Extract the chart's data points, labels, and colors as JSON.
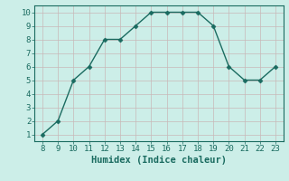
{
  "x": [
    8,
    9,
    10,
    11,
    12,
    13,
    14,
    15,
    16,
    17,
    18,
    19,
    20,
    21,
    22,
    23
  ],
  "y": [
    1,
    2,
    5,
    6,
    8,
    8,
    9,
    10,
    10,
    10,
    10,
    9,
    6,
    5,
    5,
    6
  ],
  "line_color": "#1a6b60",
  "marker": "D",
  "marker_size": 2.5,
  "bg_color": "#cceee8",
  "grid_color": "#c8b8b8",
  "xlabel": "Humidex (Indice chaleur)",
  "xlim": [
    7.5,
    23.5
  ],
  "ylim": [
    0.5,
    10.5
  ],
  "yticks": [
    1,
    2,
    3,
    4,
    5,
    6,
    7,
    8,
    9,
    10
  ],
  "xticks": [
    8,
    9,
    10,
    11,
    12,
    13,
    14,
    15,
    16,
    17,
    18,
    19,
    20,
    21,
    22,
    23
  ],
  "tick_color": "#1a6b60",
  "spine_color": "#1a6b60",
  "xlabel_color": "#1a6b60",
  "tick_fontsize": 6.5,
  "xlabel_fontsize": 7.5,
  "linewidth": 1.0
}
